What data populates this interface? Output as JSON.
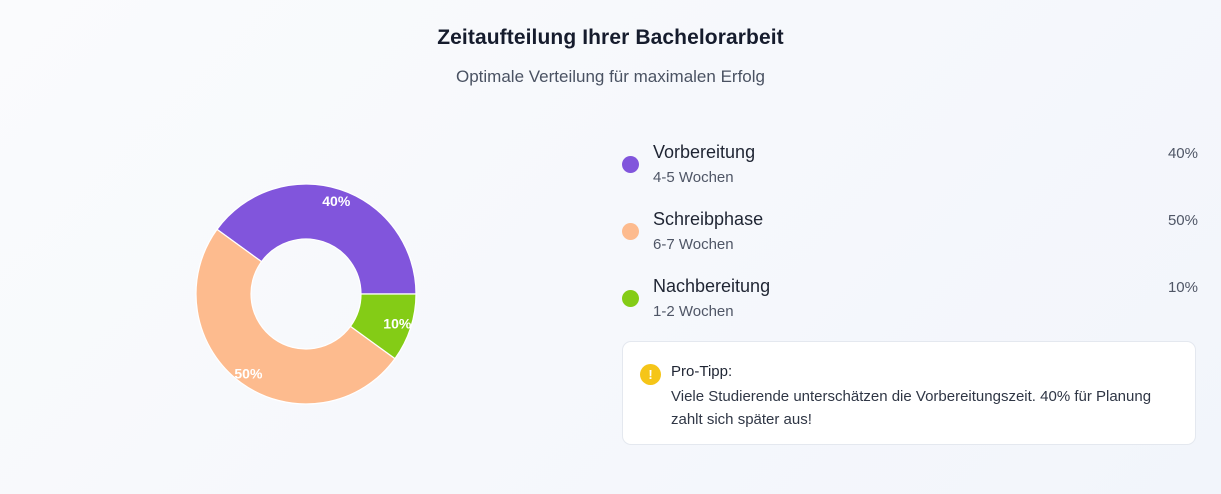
{
  "header": {
    "title": "Zeitaufteilung Ihrer Bachelorarbeit",
    "subtitle": "Optimale Verteilung für maximalen Erfolg"
  },
  "legend": {
    "items": [
      {
        "label": "Vorbereitung",
        "duration": "4-5 Wochen",
        "percent": "40%",
        "color": "#8155dc"
      },
      {
        "label": "Schreibphase",
        "duration": "6-7 Wochen",
        "percent": "50%",
        "color": "#fdbb8e"
      },
      {
        "label": "Nachbereitung",
        "duration": "1-2 Wochen",
        "percent": "10%",
        "color": "#84cc16"
      }
    ]
  },
  "tip": {
    "icon": "exclamation-icon",
    "icon_glyph": "!",
    "title": "Pro-Tipp:",
    "text": "Viele Studierende unterschätzen die Vorbereitungszeit. 40% für Planung zahlt sich später aus!"
  },
  "chart_data": {
    "type": "pie",
    "style": "donut",
    "categories": [
      "Vorbereitung",
      "Schreibphase",
      "Nachbereitung"
    ],
    "values": [
      40,
      50,
      10
    ],
    "labels": [
      "40%",
      "50%",
      "10%"
    ],
    "colors": [
      "#8155dc",
      "#fdbb8e",
      "#84cc16"
    ],
    "start_angle_deg": 0,
    "direction": "counterclockwise"
  }
}
